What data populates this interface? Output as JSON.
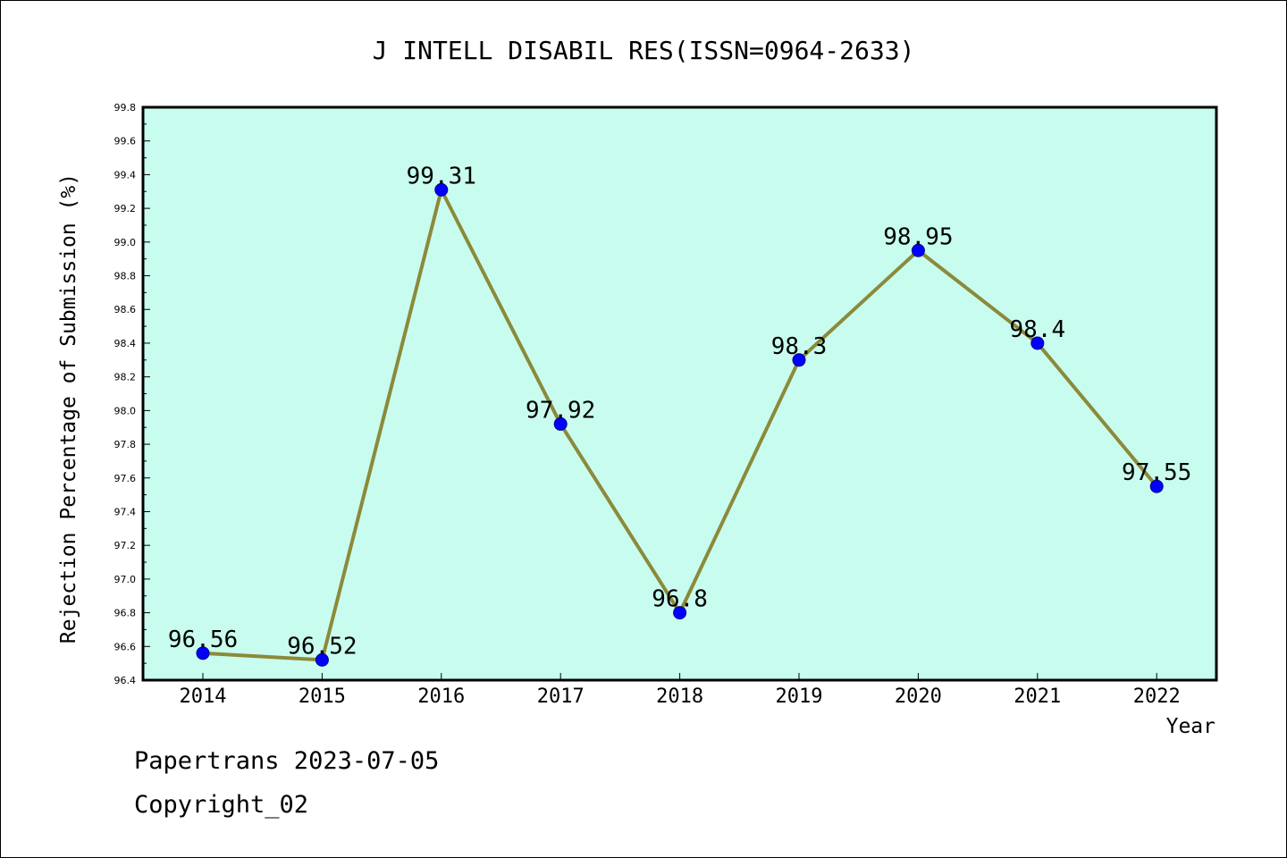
{
  "chart_data": {
    "type": "line",
    "title": "J INTELL DISABIL RES(ISSN=0964-2633)",
    "xlabel": "Year",
    "ylabel": "Rejection Percentage of Submission (%)",
    "categories": [
      "2014",
      "2015",
      "2016",
      "2017",
      "2018",
      "2019",
      "2020",
      "2021",
      "2022"
    ],
    "values": [
      96.56,
      96.52,
      99.31,
      97.92,
      96.8,
      98.3,
      98.95,
      98.4,
      97.55
    ],
    "data_labels": [
      "96.56",
      "96.52",
      "99.31",
      "97.92",
      "96.8",
      "98.3",
      "98.95",
      "98.4",
      "97.55"
    ],
    "ylim": [
      96.4,
      99.8
    ],
    "yticks": [
      "96.4",
      "96.6",
      "96.8",
      "97.0",
      "97.2",
      "97.4",
      "97.6",
      "97.8",
      "98.0",
      "98.2",
      "98.4",
      "98.6",
      "98.8",
      "99.0",
      "99.2",
      "99.4",
      "99.6",
      "99.8"
    ],
    "grid": false,
    "line_color": "#8b8a3a",
    "marker_color": "#0000ff",
    "plot_background": "#c8fcee"
  },
  "footer": {
    "line1": "Papertrans 2023-07-05",
    "line2": "Copyright_02"
  }
}
